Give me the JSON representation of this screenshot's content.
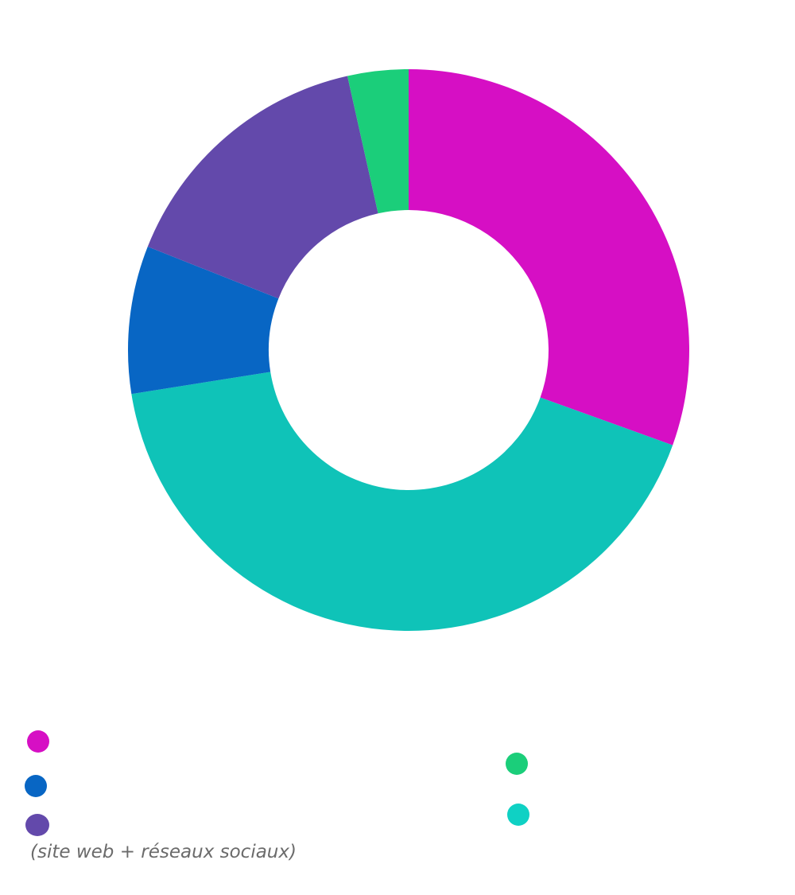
{
  "chart_data": {
    "type": "pie",
    "donut": true,
    "slices": [
      {
        "value": 30.5,
        "color": "#d60fc4"
      },
      {
        "value": 42.0,
        "color": "#0fc3b8"
      },
      {
        "value": 8.5,
        "color": "#0866c4"
      },
      {
        "value": 15.5,
        "color": "#6349ab"
      },
      {
        "value": 3.5,
        "color": "#1bce7a"
      }
    ],
    "legend_colors": [
      "#d60fc4",
      "#0866c4",
      "#6349ab",
      "#1bce7a",
      "#0fd1c4"
    ],
    "legend_note": "(site web + réseaux sociaux)"
  }
}
